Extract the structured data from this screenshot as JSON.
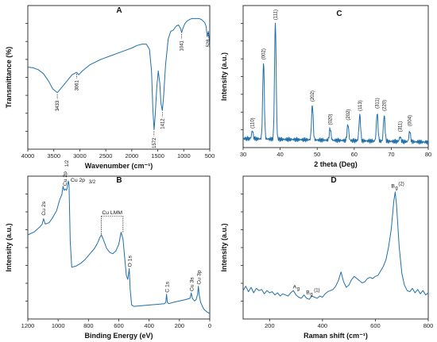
{
  "chart_data": [
    {
      "panel": "A",
      "type": "line",
      "xlabel": "Wavenumber (cm⁻¹)",
      "ylabel": "Transmittance (%)",
      "xlim": [
        4000,
        500
      ],
      "x_ticks": [
        4000,
        3500,
        3000,
        2500,
        2000,
        1500,
        1000,
        500
      ],
      "x_reversed": true,
      "color": "#1f6fa8",
      "annotations": [
        "3433",
        "3061",
        "1572",
        "1412",
        "1041",
        "528"
      ],
      "annotation_x": [
        3433,
        3061,
        1572,
        1412,
        1041,
        528
      ],
      "series": [
        {
          "x": [
            4000,
            3900,
            3800,
            3700,
            3600,
            3520,
            3433,
            3350,
            3250,
            3150,
            3061,
            3020,
            2950,
            2800,
            2600,
            2400,
            2200,
            2000,
            1900,
            1800,
            1720,
            1660,
            1620,
            1595,
            1572,
            1550,
            1520,
            1490,
            1460,
            1440,
            1412,
            1390,
            1350,
            1300,
            1250,
            1200,
            1150,
            1100,
            1060,
            1041,
            1020,
            980,
            940,
            900,
            850,
            800,
            750,
            700,
            650,
            600,
            570,
            550,
            528,
            510,
            500
          ],
          "y": [
            0.58,
            0.575,
            0.56,
            0.53,
            0.47,
            0.41,
            0.38,
            0.42,
            0.47,
            0.52,
            0.54,
            0.52,
            0.55,
            0.6,
            0.64,
            0.67,
            0.7,
            0.73,
            0.75,
            0.76,
            0.76,
            0.72,
            0.55,
            0.25,
            0.09,
            0.2,
            0.42,
            0.55,
            0.45,
            0.3,
            0.24,
            0.34,
            0.6,
            0.8,
            0.86,
            0.87,
            0.9,
            0.91,
            0.88,
            0.85,
            0.88,
            0.92,
            0.94,
            0.95,
            0.96,
            0.96,
            0.96,
            0.96,
            0.95,
            0.93,
            0.9,
            0.82,
            0.86,
            0.8,
            0.75
          ]
        }
      ]
    },
    {
      "panel": "C",
      "type": "line",
      "xlabel": "2 theta (Deg)",
      "ylabel": "Intensity (a.u.)",
      "xlim": [
        30,
        80
      ],
      "x_ticks": [
        30,
        40,
        50,
        60,
        70,
        80
      ],
      "color": "#1f6fa8",
      "peaks": [
        {
          "label": "(110)",
          "x": 32.5,
          "y": 0.07
        },
        {
          "label": "(002)",
          "x": 35.5,
          "y": 0.66
        },
        {
          "label": "(111)",
          "x": 38.7,
          "y": 1.0
        },
        {
          "label": "(202)",
          "x": 48.7,
          "y": 0.3
        },
        {
          "label": "(020)",
          "x": 53.5,
          "y": 0.1
        },
        {
          "label": "(202)",
          "x": 58.3,
          "y": 0.14
        },
        {
          "label": "(113)",
          "x": 61.5,
          "y": 0.22
        },
        {
          "label": "(311)",
          "x": 66.2,
          "y": 0.24
        },
        {
          "label": "(220)",
          "x": 68.1,
          "y": 0.22
        },
        {
          "label": "(311)",
          "x": 72.4,
          "y": 0.04
        },
        {
          "label": "(004)",
          "x": 75.0,
          "y": 0.09
        }
      ]
    },
    {
      "panel": "B",
      "type": "line",
      "xlabel": "Binding Energy (eV)",
      "ylabel": "Intensity (a.u.)",
      "xlim": [
        1200,
        0
      ],
      "x_ticks": [
        1200,
        1000,
        800,
        600,
        400,
        200,
        0
      ],
      "x_reversed": true,
      "color": "#1f6fa8",
      "annotations": [
        "Cu 2s",
        "Cu 2p",
        "1/2",
        "Cu 2p",
        "3/2",
        "Cu LMM",
        "O 1s",
        "C 1s",
        "Cu 3s",
        "Cu 3p"
      ],
      "series": [
        {
          "x": [
            1200,
            1160,
            1140,
            1120,
            1105,
            1096,
            1085,
            1060,
            1040,
            1010,
            990,
            975,
            968,
            960,
            952,
            945,
            940,
            933,
            928,
            920,
            910,
            880,
            850,
            820,
            790,
            760,
            740,
            725,
            715,
            700,
            680,
            660,
            640,
            620,
            600,
            585,
            572,
            560,
            550,
            541,
            531,
            525,
            515,
            500,
            450,
            400,
            350,
            300,
            290,
            285,
            280,
            270,
            240,
            200,
            160,
            130,
            122,
            115,
            100,
            90,
            80,
            75,
            70,
            60,
            40,
            20,
            5,
            0
          ],
          "y": [
            0.6,
            0.62,
            0.64,
            0.66,
            0.68,
            0.72,
            0.68,
            0.69,
            0.72,
            0.78,
            0.86,
            0.9,
            0.96,
            0.93,
            0.94,
            0.93,
            0.95,
            1.0,
            0.97,
            0.55,
            0.36,
            0.37,
            0.39,
            0.42,
            0.46,
            0.5,
            0.54,
            0.58,
            0.6,
            0.56,
            0.5,
            0.47,
            0.46,
            0.48,
            0.53,
            0.62,
            0.57,
            0.42,
            0.3,
            0.27,
            0.35,
            0.2,
            0.08,
            0.07,
            0.075,
            0.08,
            0.085,
            0.09,
            0.1,
            0.16,
            0.1,
            0.09,
            0.1,
            0.11,
            0.12,
            0.13,
            0.17,
            0.13,
            0.11,
            0.12,
            0.16,
            0.22,
            0.16,
            0.1,
            0.05,
            0.03,
            0.02,
            0.02
          ]
        }
      ]
    },
    {
      "panel": "D",
      "type": "line",
      "xlabel": "Raman shift (cm⁻¹)",
      "ylabel": "Intensity (a.u.)",
      "xlim": [
        100,
        800
      ],
      "x_ticks": [
        200,
        400,
        600,
        800
      ],
      "color": "#1f6fa8",
      "annotations": [
        "A",
        "g",
        "B",
        "g",
        "(1)",
        "B",
        "g",
        "(2)"
      ],
      "series": [
        {
          "x": [
            100,
            110,
            120,
            130,
            140,
            150,
            160,
            170,
            180,
            190,
            200,
            210,
            220,
            230,
            240,
            250,
            260,
            270,
            280,
            290,
            300,
            310,
            320,
            330,
            340,
            350,
            360,
            370,
            380,
            390,
            400,
            410,
            420,
            430,
            440,
            450,
            460,
            470,
            480,
            490,
            500,
            510,
            520,
            530,
            540,
            550,
            560,
            570,
            580,
            590,
            600,
            610,
            620,
            630,
            640,
            650,
            660,
            670,
            675,
            680,
            690,
            700,
            710,
            720,
            730,
            740,
            750,
            760,
            770,
            780,
            790,
            800
          ],
          "y": [
            0.1,
            0.14,
            0.09,
            0.13,
            0.08,
            0.12,
            0.1,
            0.11,
            0.07,
            0.1,
            0.08,
            0.09,
            0.06,
            0.08,
            0.05,
            0.07,
            0.06,
            0.05,
            0.08,
            0.1,
            0.06,
            0.04,
            0.03,
            0.06,
            0.03,
            0.02,
            0.05,
            0.04,
            0.03,
            0.05,
            0.04,
            0.07,
            0.09,
            0.1,
            0.11,
            0.14,
            0.19,
            0.27,
            0.18,
            0.13,
            0.15,
            0.2,
            0.23,
            0.21,
            0.19,
            0.17,
            0.18,
            0.21,
            0.22,
            0.21,
            0.23,
            0.24,
            0.28,
            0.32,
            0.38,
            0.5,
            0.66,
            0.92,
            1.0,
            0.88,
            0.5,
            0.26,
            0.15,
            0.1,
            0.09,
            0.12,
            0.08,
            0.11,
            0.07,
            0.1,
            0.06,
            0.08
          ]
        }
      ]
    }
  ]
}
